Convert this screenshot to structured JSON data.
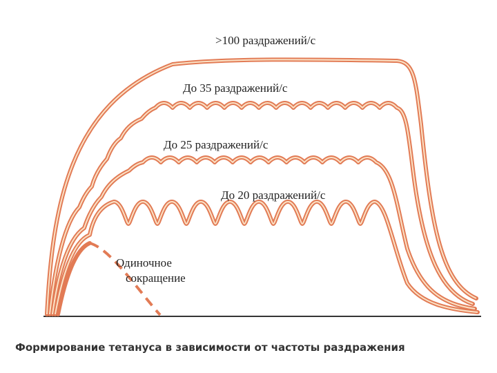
{
  "labels": {
    "over_100": ">100 раздражений/с",
    "to_35": "До 35 раздражений/с",
    "to_25": "До 25 раздражений/с",
    "to_20": "До 20 раздражений/с",
    "single_1": "Одиночное",
    "single_2": "сокращение"
  },
  "caption": "Формирование тетануса в зависимости от частоты раздражения"
}
